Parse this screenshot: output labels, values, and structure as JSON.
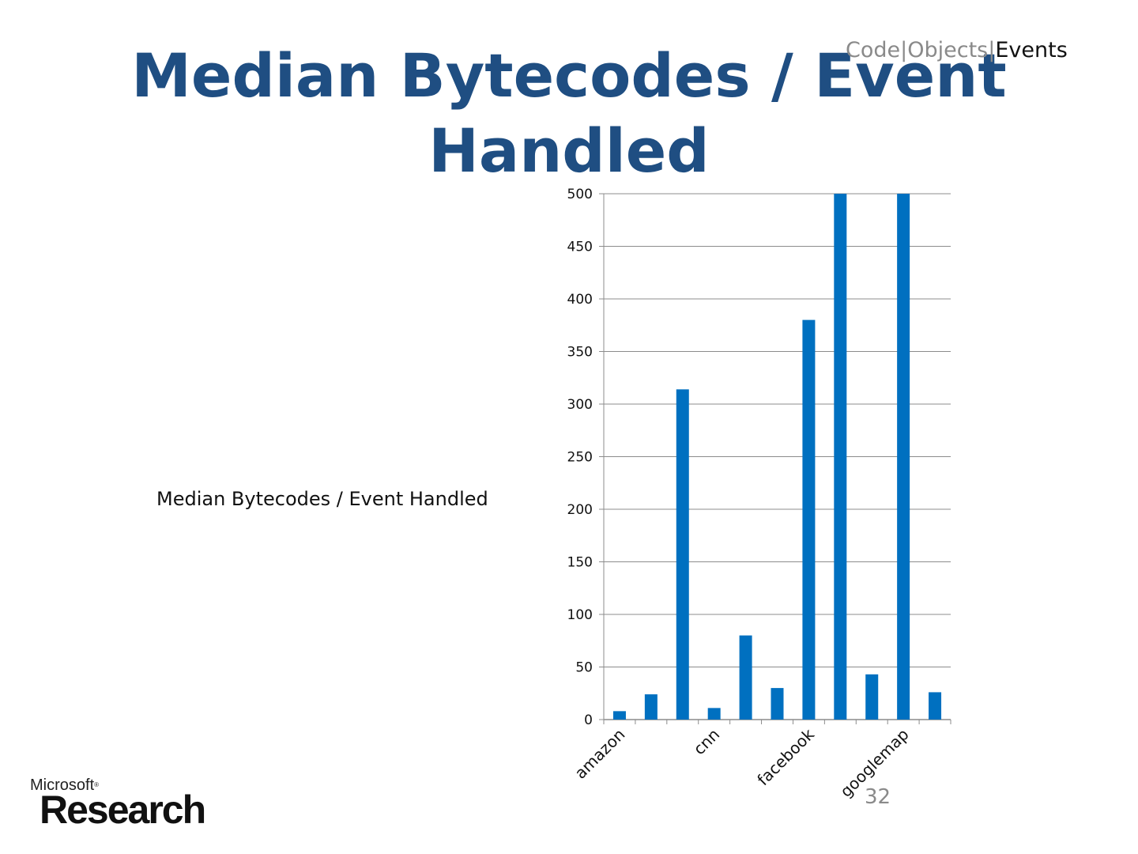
{
  "slide": {
    "title": "Median Bytecodes / Event Handled",
    "breadcrumb": {
      "part1": "Code",
      "sep1": "|",
      "part2": "Objects",
      "sep2": "|",
      "active": "Events"
    },
    "page_number": "32",
    "logo": {
      "small": "Microsoft",
      "reg": "®",
      "big": "Research"
    }
  },
  "colors": {
    "title": "#1F4E82",
    "bar": "#0070C0",
    "grid": "#8c8c8c"
  },
  "chart_data": {
    "type": "bar",
    "title": "",
    "series": [
      {
        "name": "Median Bytecodes / Event Handled",
        "values": [
          8,
          24,
          314,
          11,
          80,
          30,
          380,
          500,
          43,
          500,
          26
        ]
      }
    ],
    "categories": [
      "amazon",
      "",
      "",
      "cnn",
      "",
      "",
      "facebook",
      "",
      "",
      "googlemap",
      ""
    ],
    "yticks": [
      "0",
      "50",
      "100",
      "150",
      "200",
      "250",
      "300",
      "350",
      "400",
      "450",
      "500"
    ],
    "ylim": [
      0,
      500
    ],
    "grid": true,
    "legend_position": "left"
  }
}
